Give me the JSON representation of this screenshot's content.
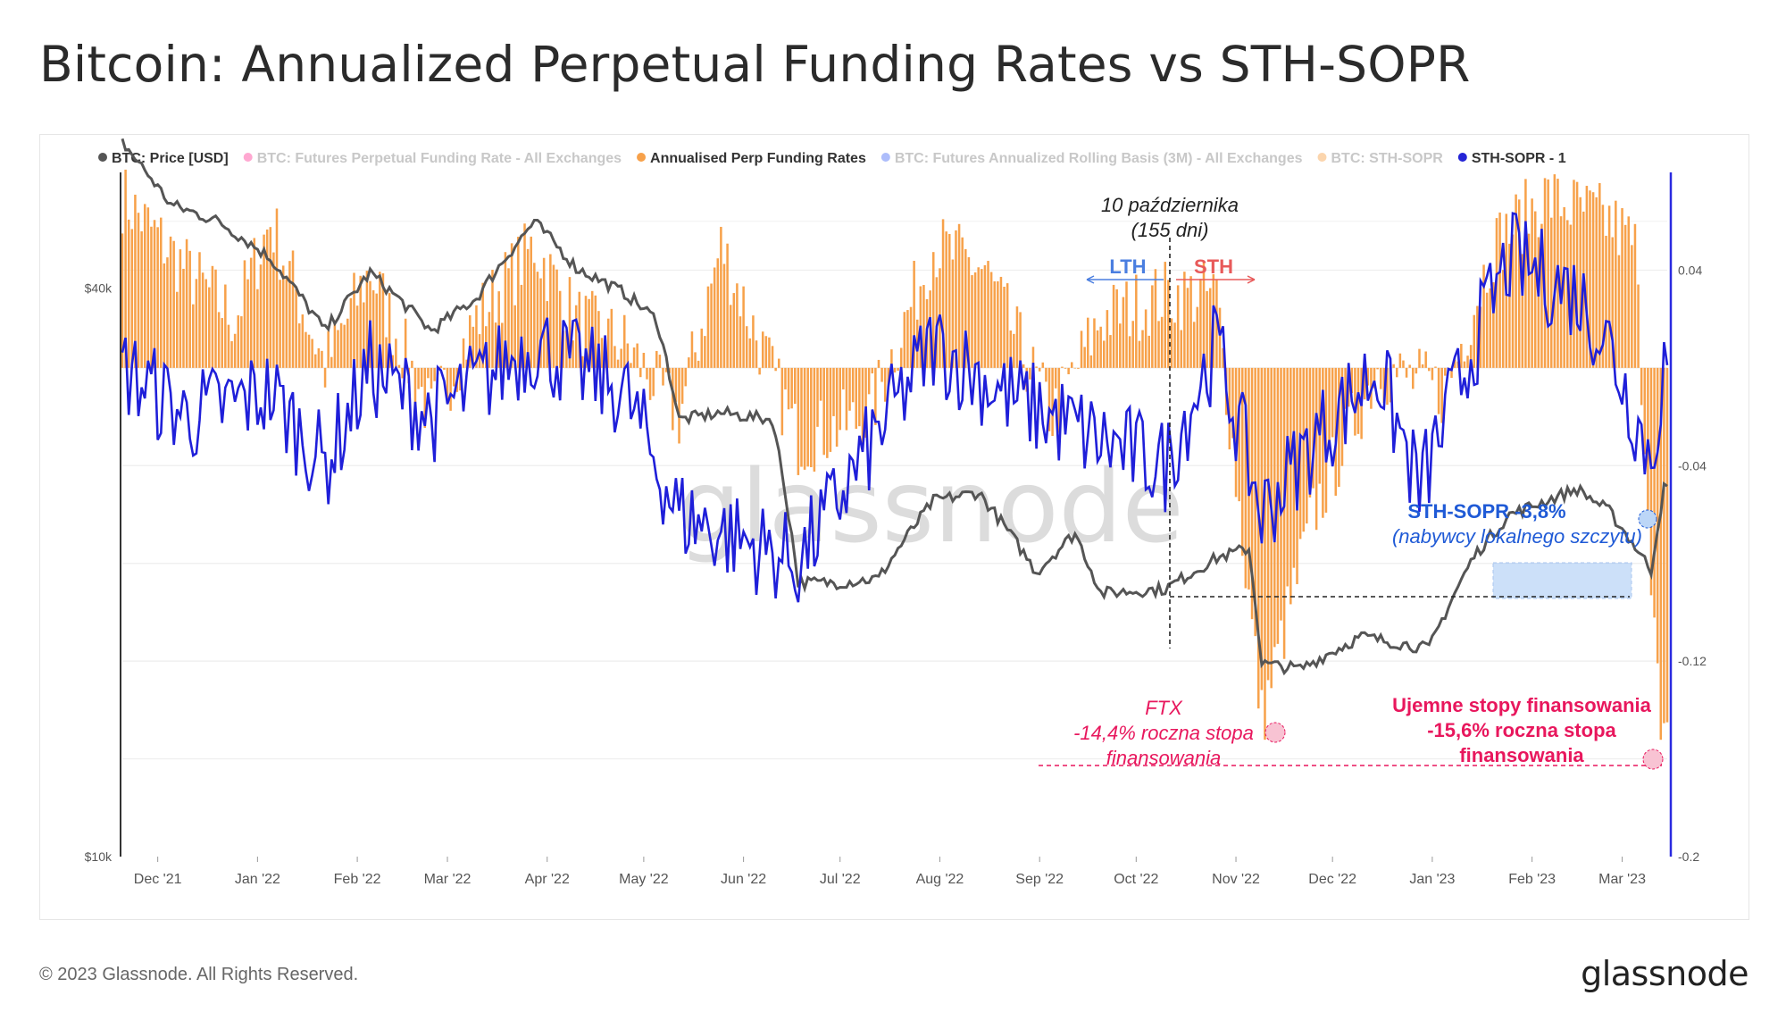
{
  "title": "Bitcoin: Annualized Perpetual Funding Rates vs STH-SOPR",
  "footer": {
    "copyright": "© 2023 Glassnode. All Rights Reserved.",
    "logo": "glassnode"
  },
  "watermark": "glassnode",
  "legend": [
    {
      "label": "BTC: Price [USD]",
      "color": "#555555",
      "active": true
    },
    {
      "label": "BTC: Futures Perpetual Funding Rate - All Exchanges",
      "color": "#ff3d9a",
      "active": false
    },
    {
      "label": "Annualised Perp Funding Rates",
      "color": "#f7a14a",
      "active": true
    },
    {
      "label": "BTC: Futures Annualized Rolling Basis (3M) - All Exchanges",
      "color": "#4a6cf7",
      "active": false
    },
    {
      "label": "BTC: STH-SOPR",
      "color": "#f7a14a",
      "active": false
    },
    {
      "label": "STH-SOPR - 1",
      "color": "#2424d6",
      "active": true
    }
  ],
  "colors": {
    "price": "#555555",
    "funding": "#f7a14a",
    "sopr": "#1f1fd9",
    "right_axis": "#2a2ae0",
    "annotation_red": "#e8175d",
    "annotation_blue": "#1f5ad6",
    "highlight_fill": "#bcd6f7"
  },
  "annotations": {
    "date_line_1": "10 października",
    "date_line_2": "(155 dni)",
    "lth": "LTH",
    "sth": "STH",
    "sopr_label": "STH-SOPR -3,8%",
    "sopr_sublabel": "(nabywcy lokalnego szczytu)",
    "ftx_1": "FTX",
    "ftx_2": "-14,4% roczna stopa",
    "ftx_3": "finansowania",
    "neg_1": "Ujemne stopy finansowania",
    "neg_2": "-15,6% roczna stopa",
    "neg_3": "finansowania"
  },
  "chart_data": {
    "type": "line",
    "x_ticks": [
      "Dec '21",
      "Jan '22",
      "Feb '22",
      "Mar '22",
      "Apr '22",
      "May '22",
      "Jun '22",
      "Jul '22",
      "Aug '22",
      "Sep '22",
      "Oct '22",
      "Nov '22",
      "Dec '22",
      "Jan '23",
      "Feb '23",
      "Mar '23"
    ],
    "x_range": [
      "2021-11-20",
      "2023-03-15"
    ],
    "left_axis": {
      "scale": "log",
      "ticks": [
        "$40k",
        "$10k"
      ],
      "range": [
        10000,
        53000
      ]
    },
    "right_axis": {
      "scale": "linear",
      "ticks": [
        "0.04",
        "-0.04",
        "-0.12",
        "-0.2"
      ],
      "range": [
        -0.2,
        0.08
      ]
    },
    "series": [
      {
        "name": "BTC: Price [USD]",
        "axis": "left",
        "points": [
          [
            "2021-11-20",
            57000
          ],
          [
            "2021-12-05",
            49000
          ],
          [
            "2021-12-20",
            47000
          ],
          [
            "2022-01-05",
            43000
          ],
          [
            "2022-01-22",
            36000
          ],
          [
            "2022-02-05",
            41500
          ],
          [
            "2022-02-24",
            36000
          ],
          [
            "2022-03-10",
            39000
          ],
          [
            "2022-03-28",
            47000
          ],
          [
            "2022-04-10",
            42000
          ],
          [
            "2022-04-25",
            39500
          ],
          [
            "2022-05-05",
            37000
          ],
          [
            "2022-05-12",
            29000
          ],
          [
            "2022-05-25",
            29500
          ],
          [
            "2022-06-10",
            29000
          ],
          [
            "2022-06-18",
            19500
          ],
          [
            "2022-07-01",
            19500
          ],
          [
            "2022-07-13",
            19700
          ],
          [
            "2022-07-30",
            23800
          ],
          [
            "2022-08-13",
            24300
          ],
          [
            "2022-08-31",
            20000
          ],
          [
            "2022-09-12",
            22000
          ],
          [
            "2022-09-20",
            19000
          ],
          [
            "2022-10-10",
            19200
          ],
          [
            "2022-10-26",
            20700
          ],
          [
            "2022-11-05",
            21200
          ],
          [
            "2022-11-09",
            16000
          ],
          [
            "2022-11-21",
            15800
          ],
          [
            "2022-12-10",
            17100
          ],
          [
            "2022-12-31",
            16600
          ],
          [
            "2023-01-14",
            20800
          ],
          [
            "2023-01-25",
            23000
          ],
          [
            "2023-02-15",
            24500
          ],
          [
            "2023-02-25",
            23200
          ],
          [
            "2023-03-10",
            20100
          ],
          [
            "2023-03-14",
            24500
          ]
        ]
      },
      {
        "name": "Annualised Perp Funding Rates",
        "axis": "right",
        "points": [
          [
            "2021-11-20",
            0.07
          ],
          [
            "2021-12-10",
            0.04
          ],
          [
            "2021-12-25",
            0.02
          ],
          [
            "2022-01-05",
            0.06
          ],
          [
            "2022-01-22",
            0.0
          ],
          [
            "2022-02-05",
            0.04
          ],
          [
            "2022-02-24",
            -0.02
          ],
          [
            "2022-03-10",
            0.02
          ],
          [
            "2022-03-28",
            0.05
          ],
          [
            "2022-04-10",
            0.02
          ],
          [
            "2022-04-25",
            0.01
          ],
          [
            "2022-05-12",
            -0.02
          ],
          [
            "2022-05-25",
            0.05
          ],
          [
            "2022-06-18",
            -0.03
          ],
          [
            "2022-07-10",
            -0.02
          ],
          [
            "2022-07-30",
            0.05
          ],
          [
            "2022-08-15",
            0.04
          ],
          [
            "2022-09-05",
            -0.02
          ],
          [
            "2022-09-20",
            0.02
          ],
          [
            "2022-10-10",
            0.03
          ],
          [
            "2022-10-26",
            0.03
          ],
          [
            "2022-11-09",
            -0.144
          ],
          [
            "2022-11-25",
            -0.06
          ],
          [
            "2022-12-15",
            0.0
          ],
          [
            "2023-01-05",
            -0.01
          ],
          [
            "2023-01-20",
            0.05
          ],
          [
            "2023-02-05",
            0.07
          ],
          [
            "2023-02-25",
            0.06
          ],
          [
            "2023-03-05",
            0.05
          ],
          [
            "2023-03-13",
            -0.156
          ]
        ]
      },
      {
        "name": "STH-SOPR - 1",
        "axis": "right",
        "points": [
          [
            "2021-11-20",
            0.0
          ],
          [
            "2021-12-10",
            -0.02
          ],
          [
            "2022-01-05",
            -0.01
          ],
          [
            "2022-01-22",
            -0.04
          ],
          [
            "2022-02-05",
            0.0
          ],
          [
            "2022-02-24",
            -0.02
          ],
          [
            "2022-03-28",
            0.01
          ],
          [
            "2022-04-25",
            -0.01
          ],
          [
            "2022-05-12",
            -0.06
          ],
          [
            "2022-06-18",
            -0.08
          ],
          [
            "2022-07-30",
            0.01
          ],
          [
            "2022-08-20",
            -0.01
          ],
          [
            "2022-09-20",
            -0.03
          ],
          [
            "2022-10-10",
            -0.04
          ],
          [
            "2022-10-26",
            0.01
          ],
          [
            "2022-11-09",
            -0.06
          ],
          [
            "2022-11-25",
            -0.03
          ],
          [
            "2022-12-15",
            0.0
          ],
          [
            "2022-12-28",
            -0.05
          ],
          [
            "2023-01-14",
            0.01
          ],
          [
            "2023-01-25",
            0.045
          ],
          [
            "2023-02-15",
            0.03
          ],
          [
            "2023-02-25",
            0.01
          ],
          [
            "2023-03-10",
            -0.038
          ],
          [
            "2023-03-14",
            0.0
          ]
        ]
      }
    ]
  }
}
